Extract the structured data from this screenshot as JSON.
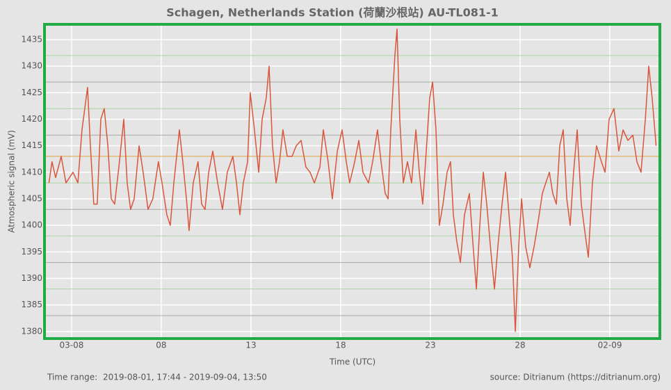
{
  "chart_data": {
    "type": "line",
    "title": "Schagen, Netherlands Station (荷蘭沙根站) AU-TL081-1",
    "x_label": "Time (UTC)",
    "y_label": "Atmospheric signal (mV)",
    "color": "#d9553c",
    "grid": true,
    "xlim": [
      1.53,
      35.75
    ],
    "ylim": [
      1378.8,
      1437.75
    ],
    "xticks": [
      {
        "value": 3,
        "label": "03-08"
      },
      {
        "value": 8,
        "label": "08"
      },
      {
        "value": 13,
        "label": "13"
      },
      {
        "value": 18,
        "label": "18"
      },
      {
        "value": 23,
        "label": "23"
      },
      {
        "value": 28,
        "label": "28"
      },
      {
        "value": 33,
        "label": "02-09"
      }
    ],
    "yticks": [
      1380,
      1385,
      1390,
      1395,
      1400,
      1405,
      1410,
      1415,
      1420,
      1425,
      1430,
      1435
    ],
    "reference_lines": [
      {
        "value": 1432,
        "color": "#a8d8a0"
      },
      {
        "value": 1427,
        "color": "#a8a8a8"
      },
      {
        "value": 1422,
        "color": "#a8d8a0"
      },
      {
        "value": 1417,
        "color": "#a8a8a8"
      },
      {
        "value": 1413,
        "color": "#e0a040"
      },
      {
        "value": 1408,
        "color": "#a8d8a0"
      },
      {
        "value": 1403,
        "color": "#a8a8a8"
      },
      {
        "value": 1398,
        "color": "#a8d8a0"
      },
      {
        "value": 1393,
        "color": "#a8a8a8"
      },
      {
        "value": 1388,
        "color": "#a8d8a0"
      },
      {
        "value": 1383,
        "color": "#a8a8a8"
      }
    ],
    "x": [
      1.74,
      1.91,
      2.11,
      2.42,
      2.69,
      3.08,
      3.35,
      3.58,
      3.89,
      4.05,
      4.24,
      4.43,
      4.63,
      4.82,
      5.02,
      5.21,
      5.4,
      5.67,
      5.91,
      6.1,
      6.29,
      6.49,
      6.76,
      6.99,
      7.26,
      7.53,
      7.84,
      8.04,
      8.31,
      8.5,
      8.7,
      9.01,
      9.2,
      9.4,
      9.55,
      9.78,
      10.05,
      10.25,
      10.44,
      10.64,
      10.87,
      11.14,
      11.41,
      11.68,
      11.99,
      12.19,
      12.38,
      12.57,
      12.81,
      12.96,
      13.19,
      13.43,
      13.62,
      13.85,
      14.01,
      14.2,
      14.4,
      14.59,
      14.78,
      15.02,
      15.29,
      15.52,
      15.79,
      16.06,
      16.29,
      16.53,
      16.84,
      17.03,
      17.3,
      17.53,
      17.81,
      18.08,
      18.31,
      18.5,
      18.78,
      19.01,
      19.24,
      19.55,
      19.78,
      20.05,
      20.25,
      20.48,
      20.64,
      20.79,
      21.02,
      21.14,
      21.29,
      21.49,
      21.72,
      21.95,
      22.19,
      22.38,
      22.57,
      22.73,
      22.96,
      23.12,
      23.31,
      23.5,
      23.7,
      23.93,
      24.12,
      24.28,
      24.47,
      24.67,
      24.9,
      25.17,
      25.36,
      25.56,
      25.75,
      25.95,
      26.14,
      26.37,
      26.57,
      26.76,
      26.99,
      27.19,
      27.38,
      27.57,
      27.73,
      27.92,
      28.08,
      28.31,
      28.54,
      28.78,
      28.97,
      29.24,
      29.43,
      29.63,
      29.82,
      30.02,
      30.21,
      30.4,
      30.6,
      30.79,
      30.98,
      31.18,
      31.41,
      31.64,
      31.8,
      32.03,
      32.26,
      32.53,
      32.73,
      32.96,
      33.23,
      33.5,
      33.74,
      34.01,
      34.28,
      34.51,
      34.74,
      34.98,
      35.17,
      35.36,
      35.58
    ],
    "values": [
      1408,
      1412,
      1409,
      1413,
      1408,
      1410,
      1408,
      1418,
      1426,
      1415,
      1404,
      1404,
      1420,
      1422,
      1415,
      1405,
      1404,
      1412,
      1420,
      1408,
      1403,
      1405,
      1415,
      1410,
      1403,
      1405,
      1412,
      1408,
      1402,
      1400,
      1408,
      1418,
      1412,
      1405,
      1399,
      1408,
      1412,
      1404,
      1403,
      1410,
      1414,
      1408,
      1403,
      1410,
      1413,
      1408,
      1402,
      1408,
      1412,
      1425,
      1418,
      1410,
      1420,
      1424,
      1430,
      1415,
      1408,
      1412,
      1418,
      1413,
      1413,
      1415,
      1416,
      1411,
      1410,
      1408,
      1411,
      1418,
      1412,
      1405,
      1414,
      1418,
      1412,
      1408,
      1412,
      1416,
      1410,
      1408,
      1412,
      1418,
      1412,
      1406,
      1405,
      1418,
      1432,
      1437,
      1420,
      1408,
      1412,
      1408,
      1418,
      1410,
      1404,
      1412,
      1424,
      1427,
      1418,
      1400,
      1404,
      1410,
      1412,
      1402,
      1397,
      1393,
      1402,
      1406,
      1397,
      1388,
      1400,
      1410,
      1404,
      1395,
      1388,
      1396,
      1404,
      1410,
      1402,
      1394,
      1380,
      1396,
      1405,
      1396,
      1392,
      1396,
      1400,
      1406,
      1408,
      1410,
      1406,
      1404,
      1415,
      1418,
      1405,
      1400,
      1410,
      1418,
      1404,
      1398,
      1394,
      1408,
      1415,
      1412,
      1410,
      1420,
      1422,
      1414,
      1418,
      1416,
      1417,
      1412,
      1410,
      1420,
      1430,
      1424,
      1415
    ]
  },
  "footer": {
    "time_range_label": "Time range:",
    "time_range": "2019-08-01, 17:44 - 2019-09-04, 13:50",
    "source": "source: Ditrianum (https://ditrianum.org)"
  }
}
